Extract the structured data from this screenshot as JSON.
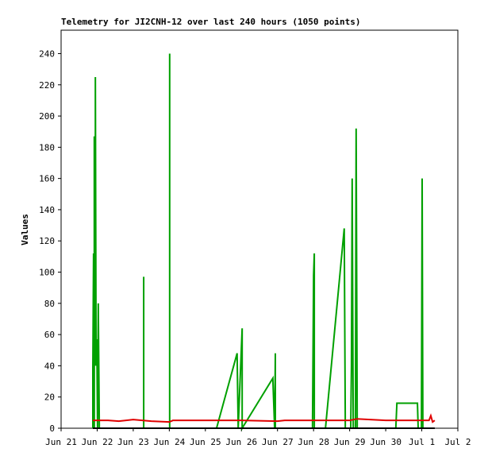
{
  "chart_data": {
    "type": "line",
    "title": "Telemetry for JI2CNH-12 over last 240 hours (1050 points)",
    "ylabel": "Values",
    "xlim": [
      21,
      32
    ],
    "xticks": [
      {
        "value": 21,
        "label": "Jun 21"
      },
      {
        "value": 22,
        "label": "Jun 22"
      },
      {
        "value": 23,
        "label": "Jun 23"
      },
      {
        "value": 24,
        "label": "Jun 24"
      },
      {
        "value": 25,
        "label": "Jun 25"
      },
      {
        "value": 26,
        "label": "Jun 26"
      },
      {
        "value": 27,
        "label": "Jun 27"
      },
      {
        "value": 28,
        "label": "Jun 28"
      },
      {
        "value": 29,
        "label": "Jun 29"
      },
      {
        "value": 30,
        "label": "Jun 30"
      },
      {
        "value": 31,
        "label": "Jul 1"
      },
      {
        "value": 32,
        "label": "Jul 2"
      }
    ],
    "ylim": [
      0,
      255
    ],
    "yticks": [
      0,
      20,
      40,
      60,
      80,
      100,
      120,
      140,
      160,
      180,
      200,
      220,
      240
    ],
    "grid": false,
    "series": [
      {
        "color": "#00a000",
        "x": [
          21.88,
          21.88,
          21.9,
          21.92,
          21.92,
          21.95,
          21.95,
          21.97,
          21.99,
          22.01,
          22.03,
          22.06,
          23.29,
          23.29,
          23.29,
          24.01,
          24.01,
          24.01,
          25.31,
          25.88,
          25.91,
          26.02,
          26.02,
          26.87,
          26.92,
          26.94,
          26.94,
          27.97,
          28.0,
          28.02,
          28.02,
          28.33,
          28.85,
          28.88,
          29.03,
          29.05,
          29.07,
          29.1,
          29.16,
          29.18,
          29.21,
          30.28,
          30.31,
          30.88,
          30.9,
          30.99,
          31.01,
          31.03
        ],
        "values": [
          0,
          38,
          112,
          0,
          187,
          40,
          225,
          40,
          57,
          0,
          80,
          0,
          0,
          97,
          0,
          0,
          240,
          0,
          0,
          48,
          0,
          64,
          0,
          32,
          0,
          48,
          0,
          0,
          98,
          112,
          0,
          0,
          128,
          0,
          0,
          40,
          160,
          0,
          0,
          192,
          0,
          0,
          16,
          16,
          0,
          0,
          160,
          0
        ]
      },
      {
        "color": "#e00000",
        "x": [
          21.88,
          22.3,
          22.6,
          23.0,
          23.5,
          24.0,
          24.1,
          25.0,
          26.0,
          27.0,
          27.2,
          28.0,
          29.0,
          29.2,
          30.0,
          31.0,
          31.2,
          31.25,
          31.3,
          31.36
        ],
        "values": [
          5,
          5,
          4.5,
          5.5,
          4.5,
          4,
          5,
          5,
          5,
          4.5,
          5,
          5,
          5,
          6,
          5,
          5,
          5,
          8,
          4,
          5
        ]
      },
      {
        "color": "#000000",
        "x": [
          21.88,
          31.36
        ],
        "values": [
          0,
          0
        ]
      }
    ]
  }
}
